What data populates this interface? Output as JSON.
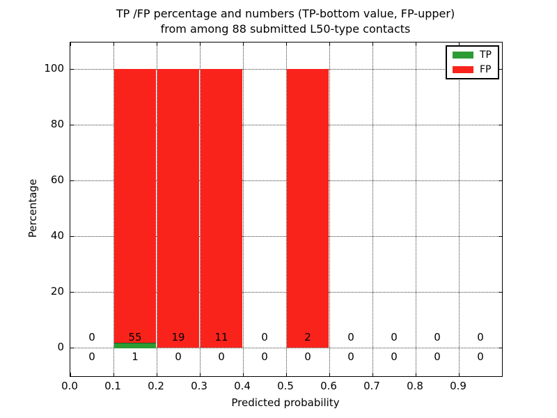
{
  "title": {
    "line1": "TP /FP percentage and numbers (TP-bottom value, FP-upper)",
    "line2": "from among 88 submitted L50-type contacts"
  },
  "axes": {
    "xlabel": "Predicted probability",
    "ylabel": "Percentage",
    "x_tick_labels": [
      "0.0",
      "0.1",
      "0.2",
      "0.3",
      "0.4",
      "0.5",
      "0.6",
      "0.7",
      "0.8",
      "0.9"
    ],
    "x_tick_values": [
      0.0,
      0.1,
      0.2,
      0.3,
      0.4,
      0.5,
      0.6,
      0.7,
      0.8,
      0.9
    ],
    "y_tick_labels": [
      "0",
      "20",
      "40",
      "60",
      "80",
      "100"
    ],
    "y_tick_values": [
      0,
      20,
      40,
      60,
      80,
      100
    ],
    "xlim": [
      0.0,
      1.0
    ],
    "ylim": [
      -10.5,
      110
    ],
    "grid": "dotted"
  },
  "legend": {
    "position": "upper right",
    "items": [
      {
        "label": "TP",
        "color": "#2d9b33"
      },
      {
        "label": "FP",
        "color": "#fa231b"
      }
    ]
  },
  "colors": {
    "tp": "#2d9b33",
    "fp": "#fa231b",
    "grid": "#3a3a3a",
    "text": "#000000"
  },
  "chart_data": {
    "type": "bar",
    "stacked": true,
    "title": "TP /FP percentage and numbers (TP-bottom value, FP-upper) from among 88 submitted L50-type contacts",
    "xlabel": "Predicted probability",
    "ylabel": "Percentage",
    "total_contacts": 88,
    "bin_width": 0.1,
    "bins": [
      {
        "range": [
          0.0,
          0.1
        ],
        "tp_count": 0,
        "fp_count": 0,
        "tp_pct": 0,
        "fp_pct": 0
      },
      {
        "range": [
          0.1,
          0.2
        ],
        "tp_count": 1,
        "fp_count": 55,
        "tp_pct": 1.8,
        "fp_pct": 98.2
      },
      {
        "range": [
          0.2,
          0.3
        ],
        "tp_count": 0,
        "fp_count": 19,
        "tp_pct": 0,
        "fp_pct": 100
      },
      {
        "range": [
          0.3,
          0.4
        ],
        "tp_count": 0,
        "fp_count": 11,
        "tp_pct": 0,
        "fp_pct": 100
      },
      {
        "range": [
          0.4,
          0.5
        ],
        "tp_count": 0,
        "fp_count": 0,
        "tp_pct": 0,
        "fp_pct": 0
      },
      {
        "range": [
          0.5,
          0.6
        ],
        "tp_count": 0,
        "fp_count": 2,
        "tp_pct": 0,
        "fp_pct": 100
      },
      {
        "range": [
          0.6,
          0.7
        ],
        "tp_count": 0,
        "fp_count": 0,
        "tp_pct": 0,
        "fp_pct": 0
      },
      {
        "range": [
          0.7,
          0.8
        ],
        "tp_count": 0,
        "fp_count": 0,
        "tp_pct": 0,
        "fp_pct": 0
      },
      {
        "range": [
          0.8,
          0.9
        ],
        "tp_count": 0,
        "fp_count": 0,
        "tp_pct": 0,
        "fp_pct": 0
      },
      {
        "range": [
          0.9,
          1.0
        ],
        "tp_count": 0,
        "fp_count": 0,
        "tp_pct": 0,
        "fp_pct": 0
      }
    ]
  }
}
